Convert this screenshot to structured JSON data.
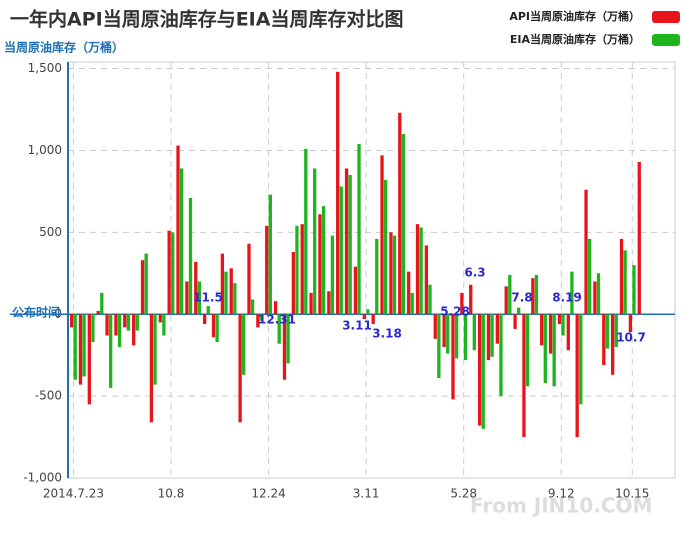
{
  "chart_data": {
    "type": "bar",
    "title": "一年内API当周原油库存与EIA当周库存对比图",
    "y_label": "当周原油库存（万桶）",
    "zero_label": "公布时间",
    "watermark": "From JIN10.COM",
    "categories": [
      "2014.7.23",
      null,
      null,
      null,
      null,
      null,
      null,
      null,
      null,
      null,
      null,
      "10.8",
      null,
      null,
      null,
      null,
      null,
      null,
      null,
      null,
      null,
      null,
      "12.24",
      null,
      null,
      null,
      null,
      null,
      null,
      null,
      null,
      null,
      null,
      "3.11",
      null,
      null,
      null,
      null,
      null,
      null,
      null,
      null,
      null,
      null,
      "5.28",
      null,
      null,
      null,
      null,
      null,
      null,
      null,
      null,
      null,
      null,
      "9.12",
      null,
      null,
      null,
      null,
      null,
      null,
      null,
      "10.15",
      null
    ],
    "series": [
      {
        "name": "API当周原油库存（万桶）",
        "color": "#e8141b",
        "values": [
          -80,
          -430,
          -550,
          20,
          -130,
          -130,
          -80,
          -190,
          330,
          -660,
          -50,
          510,
          1030,
          200,
          320,
          -60,
          -140,
          370,
          280,
          -660,
          430,
          -80,
          540,
          80,
          -400,
          380,
          550,
          130,
          610,
          140,
          1480,
          890,
          290,
          -30,
          -60,
          970,
          500,
          1230,
          260,
          550,
          420,
          -150,
          -200,
          -520,
          130,
          180,
          -680,
          -280,
          -180,
          170,
          -90,
          -750,
          220,
          -190,
          -240,
          -60,
          -220,
          -750,
          760,
          200,
          -310,
          -370,
          460,
          -110,
          930
        ]
      },
      {
        "name": "EIA当周原油库存（万桶）",
        "color": "#1eb41e",
        "values": [
          -400,
          -380,
          -170,
          130,
          -450,
          -200,
          -100,
          -100,
          370,
          -430,
          -130,
          500,
          890,
          710,
          200,
          50,
          -170,
          260,
          190,
          -370,
          90,
          -40,
          730,
          -180,
          -300,
          540,
          1010,
          890,
          660,
          480,
          780,
          850,
          1040,
          30,
          460,
          820,
          480,
          1100,
          130,
          530,
          180,
          -390,
          -240,
          -270,
          -280,
          -220,
          -700,
          -260,
          -500,
          240,
          40,
          -440,
          240,
          -420,
          -440,
          -130,
          260,
          -550,
          460,
          250,
          -210,
          -200,
          390,
          300,
          null
        ]
      }
    ],
    "annotations": [
      "11.5",
      "12.31",
      "3.11",
      "3.18",
      "5.28",
      "6.3",
      "7.8",
      "8.19",
      "10.7"
    ],
    "ylim": [
      -1000,
      1540
    ],
    "yticks": [
      {
        "value": -1000,
        "label": "-1,000"
      },
      -500,
      0,
      500,
      {
        "value": 1000,
        "label": "1,000"
      },
      {
        "value": 1500,
        "label": "1,500"
      }
    ],
    "grid": true,
    "legend": "top-right"
  }
}
